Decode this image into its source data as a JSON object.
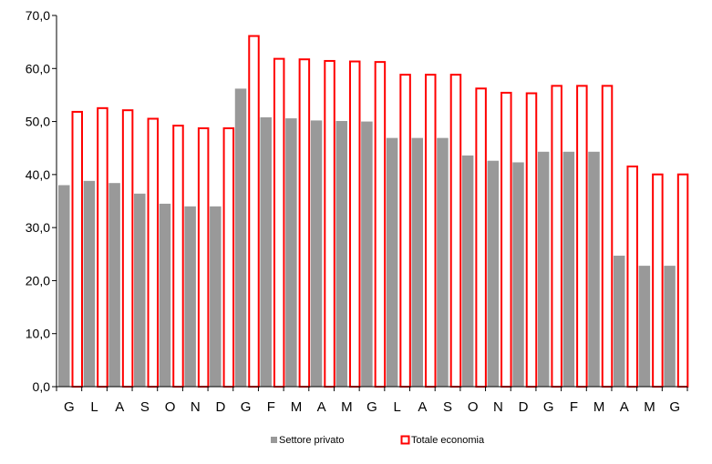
{
  "chart_data": {
    "type": "bar",
    "categories": [
      "G",
      "L",
      "A",
      "S",
      "O",
      "N",
      "D",
      "G",
      "F",
      "M",
      "A",
      "M",
      "G",
      "L",
      "A",
      "S",
      "O",
      "N",
      "D",
      "G",
      "F",
      "M",
      "A",
      "M",
      "G"
    ],
    "series": [
      {
        "name": "Settore privato",
        "color": "#999999",
        "style": "filled",
        "values": [
          38.0,
          38.8,
          38.4,
          36.4,
          34.5,
          34.0,
          34.0,
          56.2,
          50.8,
          50.6,
          50.2,
          50.1,
          50.0,
          46.9,
          46.9,
          46.9,
          43.6,
          42.6,
          42.3,
          44.3,
          44.3,
          44.3,
          24.7,
          22.8,
          22.8
        ]
      },
      {
        "name": "Totale economia",
        "color": "#ff0000",
        "style": "outline",
        "values": [
          52.0,
          52.7,
          52.3,
          50.7,
          49.4,
          48.9,
          48.9,
          66.3,
          62.0,
          61.9,
          61.6,
          61.5,
          61.4,
          59.0,
          59.0,
          59.0,
          56.4,
          55.6,
          55.5,
          56.9,
          56.9,
          56.9,
          41.7,
          40.2,
          40.2
        ]
      }
    ],
    "yticks": [
      "0,0",
      "10,0",
      "20,0",
      "30,0",
      "40,0",
      "50,0",
      "60,0",
      "70,0"
    ],
    "ylim": [
      0,
      70
    ],
    "grid": false,
    "legend_position": "bottom",
    "title": "",
    "xlabel": "",
    "ylabel": ""
  }
}
